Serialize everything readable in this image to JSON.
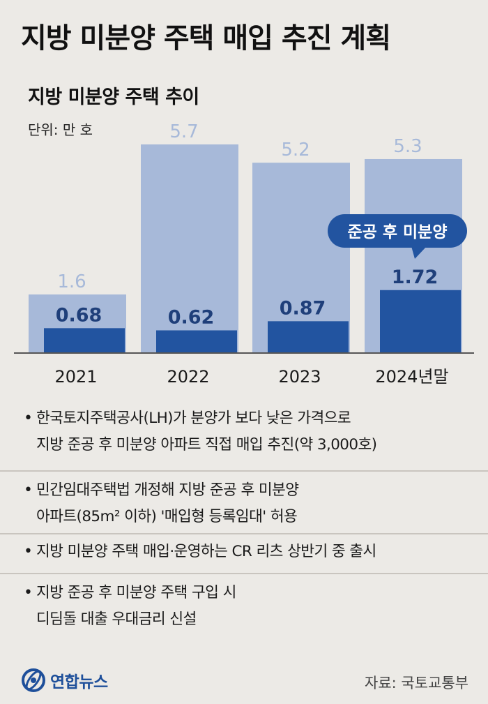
{
  "header": {
    "title": "지방 미분양 주택 매입 추진 계획"
  },
  "chart_data": {
    "type": "bar",
    "title": "지방 미분양 주택 추이",
    "unit": "단위: 만 호",
    "categories": [
      "2021",
      "2022",
      "2023",
      "2024년말"
    ],
    "series": [
      {
        "values": [
          1.6,
          5.7,
          5.2,
          5.3
        ],
        "color": "#a7b9d9",
        "label_color": "#a7b9d9"
      },
      {
        "name": "준공 후 미분양",
        "values": [
          0.68,
          0.62,
          0.87,
          1.72
        ],
        "color": "#2254a0",
        "label_color": "#1f3f7a"
      }
    ],
    "ylim": [
      0,
      5.7
    ],
    "callout": "준공 후 미분양",
    "callout_color": "#2254a0"
  },
  "bullets": [
    {
      "lines": [
        "한국토지주택공사(LH)가 분양가 보다 낮은 가격으로",
        "지방 준공 후 미분양 아파트 직접 매입 추진(약 3,000호)"
      ]
    },
    {
      "lines": [
        "민간임대주택법 개정해 지방 준공 후 미분양",
        "아파트(85m² 이하) '매입형 등록임대' 허용"
      ]
    },
    {
      "lines": [
        "지방 미분양 주택 매입·운영하는 CR 리츠 상반기 중 출시"
      ]
    },
    {
      "lines": [
        "지방 준공 후 미분양 주택 구입 시",
        "디딤돌 대출 우대금리 신설"
      ]
    }
  ],
  "footer": {
    "logo": "연합뉴스",
    "source": "자료: 국토교통부"
  }
}
